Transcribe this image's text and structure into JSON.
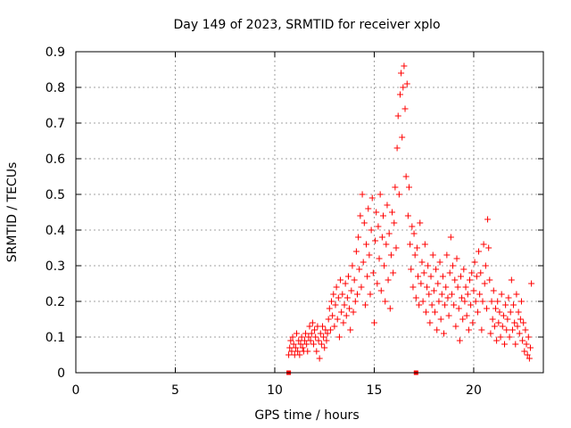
{
  "chart_data": {
    "type": "scatter",
    "title": "Day 149 of 2023, SRMTID for receiver xplo",
    "xlabel": "GPS time / hours",
    "ylabel": "SRMTID / TECUs",
    "xlim": [
      0,
      23.5
    ],
    "ylim": [
      0,
      0.9
    ],
    "xticks": [
      "0",
      "5",
      "10",
      "15",
      "20"
    ],
    "yticks": [
      "0",
      "0.1",
      "0.2",
      "0.3",
      "0.4",
      "0.5",
      "0.6",
      "0.7",
      "0.8",
      "0.9"
    ],
    "grid": true,
    "series": [
      {
        "name": "SRMTID",
        "color": "#ff0000",
        "marker": "plus",
        "points": [
          [
            10.7,
            0.05
          ],
          [
            10.75,
            0.07
          ],
          [
            10.8,
            0.09
          ],
          [
            10.85,
            0.06
          ],
          [
            10.9,
            0.1
          ],
          [
            10.95,
            0.08
          ],
          [
            11.0,
            0.05
          ],
          [
            11.05,
            0.07
          ],
          [
            11.1,
            0.11
          ],
          [
            11.15,
            0.06
          ],
          [
            11.2,
            0.09
          ],
          [
            11.25,
            0.05
          ],
          [
            11.3,
            0.08
          ],
          [
            11.35,
            0.1
          ],
          [
            11.4,
            0.07
          ],
          [
            11.45,
            0.06
          ],
          [
            11.5,
            0.09
          ],
          [
            11.55,
            0.11
          ],
          [
            11.6,
            0.08
          ],
          [
            11.65,
            0.06
          ],
          [
            11.7,
            0.1
          ],
          [
            11.75,
            0.13
          ],
          [
            11.8,
            0.09
          ],
          [
            11.85,
            0.11
          ],
          [
            11.9,
            0.14
          ],
          [
            11.95,
            0.08
          ],
          [
            12.0,
            0.12
          ],
          [
            12.05,
            0.1
          ],
          [
            12.1,
            0.06
          ],
          [
            12.15,
            0.13
          ],
          [
            12.2,
            0.09
          ],
          [
            12.25,
            0.04
          ],
          [
            12.3,
            0.11
          ],
          [
            12.35,
            0.08
          ],
          [
            12.4,
            0.13
          ],
          [
            12.45,
            0.1
          ],
          [
            12.5,
            0.07
          ],
          [
            12.55,
            0.12
          ],
          [
            12.6,
            0.09
          ],
          [
            12.65,
            0.11
          ],
          [
            12.7,
            0.15
          ],
          [
            12.75,
            0.18
          ],
          [
            12.8,
            0.12
          ],
          [
            12.85,
            0.2
          ],
          [
            12.9,
            0.16
          ],
          [
            12.95,
            0.22
          ],
          [
            13.0,
            0.13
          ],
          [
            13.05,
            0.19
          ],
          [
            13.1,
            0.24
          ],
          [
            13.15,
            0.15
          ],
          [
            13.2,
            0.21
          ],
          [
            13.25,
            0.1
          ],
          [
            13.3,
            0.26
          ],
          [
            13.35,
            0.17
          ],
          [
            13.4,
            0.22
          ],
          [
            13.45,
            0.14
          ],
          [
            13.5,
            0.19
          ],
          [
            13.55,
            0.25
          ],
          [
            13.6,
            0.16
          ],
          [
            13.65,
            0.21
          ],
          [
            13.7,
            0.27
          ],
          [
            13.75,
            0.18
          ],
          [
            13.8,
            0.12
          ],
          [
            13.85,
            0.23
          ],
          [
            13.9,
            0.3
          ],
          [
            13.95,
            0.17
          ],
          [
            14.0,
            0.26
          ],
          [
            14.05,
            0.2
          ],
          [
            14.1,
            0.34
          ],
          [
            14.15,
            0.22
          ],
          [
            14.2,
            0.38
          ],
          [
            14.25,
            0.29
          ],
          [
            14.3,
            0.44
          ],
          [
            14.35,
            0.24
          ],
          [
            14.4,
            0.5
          ],
          [
            14.45,
            0.31
          ],
          [
            14.5,
            0.42
          ],
          [
            14.55,
            0.19
          ],
          [
            14.6,
            0.36
          ],
          [
            14.65,
            0.27
          ],
          [
            14.7,
            0.46
          ],
          [
            14.75,
            0.33
          ],
          [
            14.8,
            0.22
          ],
          [
            14.85,
            0.4
          ],
          [
            14.9,
            0.49
          ],
          [
            14.95,
            0.28
          ],
          [
            15.0,
            0.14
          ],
          [
            15.05,
            0.37
          ],
          [
            15.1,
            0.45
          ],
          [
            15.15,
            0.25
          ],
          [
            15.2,
            0.41
          ],
          [
            15.25,
            0.32
          ],
          [
            15.3,
            0.5
          ],
          [
            15.35,
            0.23
          ],
          [
            15.4,
            0.38
          ],
          [
            15.45,
            0.44
          ],
          [
            15.5,
            0.3
          ],
          [
            15.55,
            0.2
          ],
          [
            15.6,
            0.36
          ],
          [
            15.65,
            0.47
          ],
          [
            15.7,
            0.26
          ],
          [
            15.75,
            0.39
          ],
          [
            15.8,
            0.18
          ],
          [
            15.85,
            0.33
          ],
          [
            15.9,
            0.45
          ],
          [
            15.95,
            0.28
          ],
          [
            16.0,
            0.42
          ],
          [
            16.05,
            0.52
          ],
          [
            16.1,
            0.35
          ],
          [
            16.15,
            0.63
          ],
          [
            16.2,
            0.72
          ],
          [
            16.25,
            0.5
          ],
          [
            16.3,
            0.78
          ],
          [
            16.35,
            0.84
          ],
          [
            16.4,
            0.66
          ],
          [
            16.45,
            0.8
          ],
          [
            16.5,
            0.86
          ],
          [
            16.55,
            0.74
          ],
          [
            16.6,
            0.55
          ],
          [
            16.65,
            0.81
          ],
          [
            16.7,
            0.44
          ],
          [
            16.75,
            0.52
          ],
          [
            16.8,
            0.36
          ],
          [
            16.85,
            0.29
          ],
          [
            16.9,
            0.41
          ],
          [
            16.95,
            0.24
          ],
          [
            17.0,
            0.39
          ],
          [
            17.05,
            0.33
          ],
          [
            17.1,
            0.21
          ],
          [
            17.15,
            0.35
          ],
          [
            17.2,
            0.27
          ],
          [
            17.25,
            0.19
          ],
          [
            17.3,
            0.42
          ],
          [
            17.35,
            0.25
          ],
          [
            17.4,
            0.31
          ],
          [
            17.45,
            0.2
          ],
          [
            17.5,
            0.28
          ],
          [
            17.55,
            0.36
          ],
          [
            17.6,
            0.17
          ],
          [
            17.65,
            0.24
          ],
          [
            17.7,
            0.3
          ],
          [
            17.75,
            0.22
          ],
          [
            17.8,
            0.14
          ],
          [
            17.85,
            0.27
          ],
          [
            17.9,
            0.19
          ],
          [
            17.95,
            0.33
          ],
          [
            18.0,
            0.23
          ],
          [
            18.05,
            0.17
          ],
          [
            18.1,
            0.29
          ],
          [
            18.15,
            0.12
          ],
          [
            18.2,
            0.25
          ],
          [
            18.25,
            0.2
          ],
          [
            18.3,
            0.31
          ],
          [
            18.35,
            0.15
          ],
          [
            18.4,
            0.22
          ],
          [
            18.45,
            0.27
          ],
          [
            18.5,
            0.11
          ],
          [
            18.55,
            0.19
          ],
          [
            18.6,
            0.24
          ],
          [
            18.65,
            0.33
          ],
          [
            18.7,
            0.21
          ],
          [
            18.75,
            0.16
          ],
          [
            18.8,
            0.28
          ],
          [
            18.85,
            0.38
          ],
          [
            18.9,
            0.22
          ],
          [
            18.95,
            0.3
          ],
          [
            19.0,
            0.19
          ],
          [
            19.05,
            0.26
          ],
          [
            19.1,
            0.13
          ],
          [
            19.15,
            0.32
          ],
          [
            19.2,
            0.24
          ],
          [
            19.25,
            0.18
          ],
          [
            19.3,
            0.09
          ],
          [
            19.35,
            0.27
          ],
          [
            19.4,
            0.21
          ],
          [
            19.45,
            0.15
          ],
          [
            19.5,
            0.29
          ],
          [
            19.55,
            0.2
          ],
          [
            19.6,
            0.24
          ],
          [
            19.65,
            0.16
          ],
          [
            19.7,
            0.22
          ],
          [
            19.75,
            0.12
          ],
          [
            19.8,
            0.26
          ],
          [
            19.85,
            0.19
          ],
          [
            19.9,
            0.28
          ],
          [
            19.95,
            0.14
          ],
          [
            20.0,
            0.23
          ],
          [
            20.05,
            0.31
          ],
          [
            20.1,
            0.2
          ],
          [
            20.15,
            0.27
          ],
          [
            20.2,
            0.17
          ],
          [
            20.25,
            0.34
          ],
          [
            20.3,
            0.22
          ],
          [
            20.35,
            0.28
          ],
          [
            20.4,
            0.12
          ],
          [
            20.45,
            0.2
          ],
          [
            20.5,
            0.36
          ],
          [
            20.55,
            0.25
          ],
          [
            20.6,
            0.3
          ],
          [
            20.65,
            0.18
          ],
          [
            20.7,
            0.43
          ],
          [
            20.75,
            0.35
          ],
          [
            20.8,
            0.26
          ],
          [
            20.85,
            0.11
          ],
          [
            20.9,
            0.2
          ],
          [
            20.95,
            0.15
          ],
          [
            21.0,
            0.23
          ],
          [
            21.05,
            0.13
          ],
          [
            21.1,
            0.18
          ],
          [
            21.15,
            0.09
          ],
          [
            21.2,
            0.2
          ],
          [
            21.25,
            0.14
          ],
          [
            21.3,
            0.17
          ],
          [
            21.35,
            0.1
          ],
          [
            21.4,
            0.22
          ],
          [
            21.45,
            0.13
          ],
          [
            21.5,
            0.16
          ],
          [
            21.55,
            0.08
          ],
          [
            21.6,
            0.19
          ],
          [
            21.65,
            0.12
          ],
          [
            21.7,
            0.15
          ],
          [
            21.75,
            0.21
          ],
          [
            21.8,
            0.1
          ],
          [
            21.85,
            0.17
          ],
          [
            21.9,
            0.26
          ],
          [
            21.95,
            0.12
          ],
          [
            22.0,
            0.19
          ],
          [
            22.05,
            0.14
          ],
          [
            22.1,
            0.08
          ],
          [
            22.15,
            0.22
          ],
          [
            22.2,
            0.13
          ],
          [
            22.25,
            0.17
          ],
          [
            22.3,
            0.11
          ],
          [
            22.35,
            0.15
          ],
          [
            22.4,
            0.2
          ],
          [
            22.45,
            0.09
          ],
          [
            22.5,
            0.14
          ],
          [
            22.55,
            0.06
          ],
          [
            22.6,
            0.12
          ],
          [
            22.65,
            0.08
          ],
          [
            22.7,
            0.05
          ],
          [
            22.75,
            0.1
          ],
          [
            22.8,
            0.04
          ],
          [
            22.85,
            0.07
          ],
          [
            22.9,
            0.25
          ]
        ]
      }
    ],
    "baseline_markers": [
      10.7,
      17.1
    ]
  }
}
